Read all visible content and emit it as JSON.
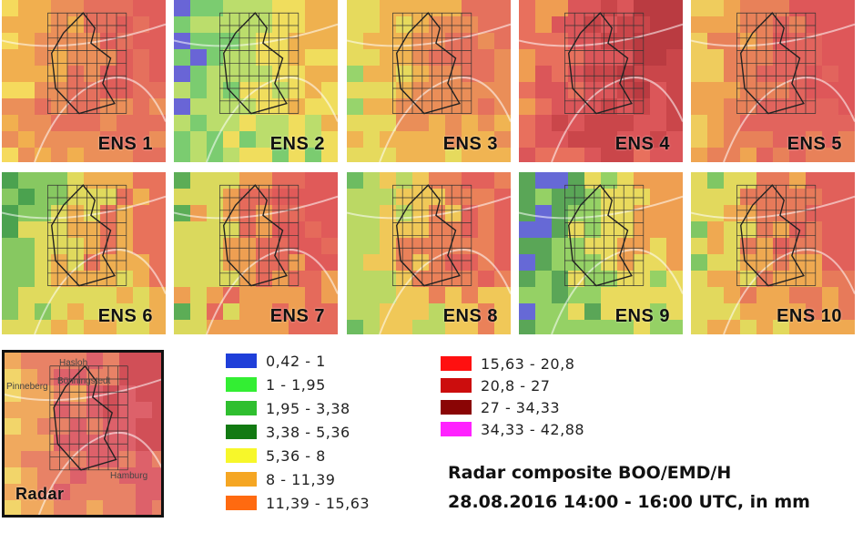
{
  "panels": [
    {
      "label": "ENS 1",
      "scheme": "red-center"
    },
    {
      "label": "ENS 2",
      "scheme": "blue-yellow"
    },
    {
      "label": "ENS 3",
      "scheme": "orange"
    },
    {
      "label": "ENS 4",
      "scheme": "darkred"
    },
    {
      "label": "ENS 5",
      "scheme": "red-orange"
    },
    {
      "label": "ENS 6",
      "scheme": "green-yellow"
    },
    {
      "label": "ENS 7",
      "scheme": "red-band"
    },
    {
      "label": "ENS 8",
      "scheme": "green-red"
    },
    {
      "label": "ENS 9",
      "scheme": "blue-green"
    },
    {
      "label": "ENS 10",
      "scheme": "red-diag"
    }
  ],
  "radar": {
    "label": "Radar",
    "places": [
      "Hasloh",
      "Bönningstedt",
      "Pinneberg",
      "Hamburg"
    ]
  },
  "legend": [
    {
      "range": "0,42 - 1",
      "color": "#1f3fd9"
    },
    {
      "range": "1 - 1,95",
      "color": "#33ee33"
    },
    {
      "range": "1,95 - 3,38",
      "color": "#2fbf2f"
    },
    {
      "range": "3,38 - 5,36",
      "color": "#127a12"
    },
    {
      "range": "5,36 - 8",
      "color": "#f7f72a"
    },
    {
      "range": "8 - 11,39",
      "color": "#f5a623"
    },
    {
      "range": "11,39 - 15,63",
      "color": "#ff6a10"
    },
    {
      "range": "15,63 - 20,8",
      "color": "#ff1010"
    },
    {
      "range": "20,8 - 27",
      "color": "#cc0d0d"
    },
    {
      "range": "27 - 34,33",
      "color": "#8a0505"
    },
    {
      "range": "34,33 - 42,88",
      "color": "#ff22ff"
    }
  ],
  "caption": {
    "line1": "Radar composite BOO/EMD/H",
    "line2": "28.08.2016 14:00 - 16:00 UTC, in mm"
  }
}
